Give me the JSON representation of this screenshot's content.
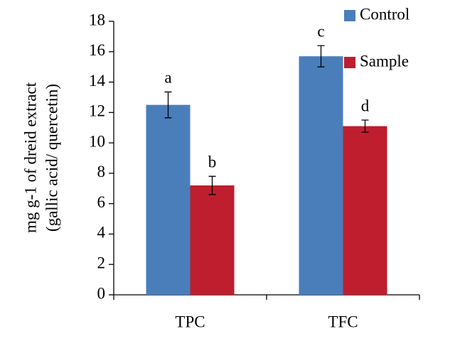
{
  "chart_data": {
    "type": "bar",
    "y_label": [
      "mg g-1 of dreid extract",
      "(gallic acid/ quercetin)"
    ],
    "categories": [
      "TPC",
      "TFC"
    ],
    "series": [
      {
        "name": "Control",
        "color": "#4a7ebb",
        "values": [
          12.5,
          15.7
        ],
        "errors": [
          0.85,
          0.7
        ],
        "letters": [
          "a",
          "c"
        ]
      },
      {
        "name": "Sample",
        "color": "#be1e2d",
        "values": [
          7.2,
          11.1
        ],
        "errors": [
          0.6,
          0.4
        ],
        "letters": [
          "b",
          "d"
        ]
      }
    ],
    "ylim": [
      0,
      18
    ],
    "yticks": [
      0,
      2,
      4,
      6,
      8,
      10,
      12,
      14,
      16,
      18
    ],
    "grid": false
  }
}
